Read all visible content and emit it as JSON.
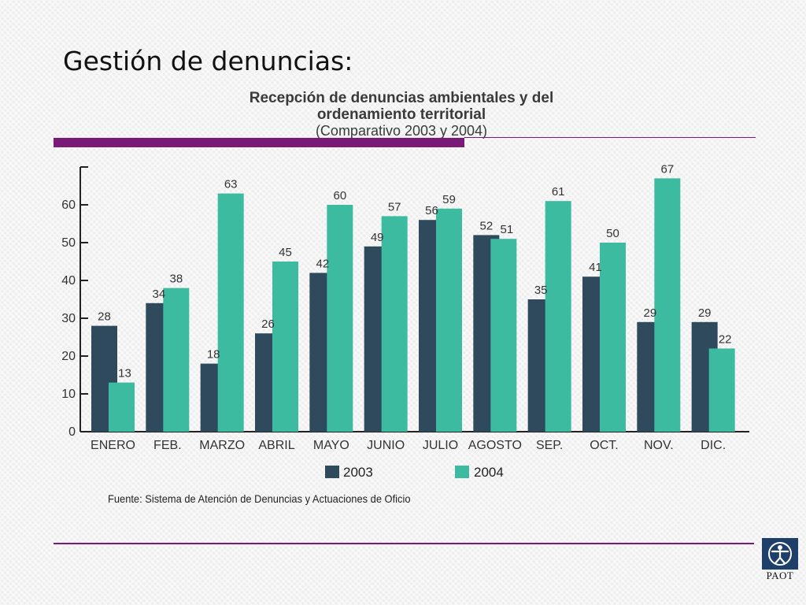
{
  "slide": {
    "title": "Gestión de denuncias:"
  },
  "colors": {
    "accent_purple": "#7a1a78",
    "series_2003": "#2e4a5c",
    "series_2004": "#3dbba1",
    "logo_blue": "#1f3f6b"
  },
  "chart_data": {
    "type": "bar",
    "title_line1": "Recepción  de denuncias ambientales y del",
    "title_line2": "ordenamiento territorial",
    "subtitle": "(Comparativo 2003 y 2004)",
    "categories": [
      "ENERO",
      "FEB.",
      "MARZO",
      "ABRIL",
      "MAYO",
      "JUNIO",
      "JULIO",
      "AGOSTO",
      "SEP.",
      "OCT.",
      "NOV.",
      "DIC."
    ],
    "series": [
      {
        "name": "2003",
        "values": [
          28,
          34,
          18,
          26,
          42,
          49,
          56,
          52,
          35,
          41,
          29,
          29
        ]
      },
      {
        "name": "2004",
        "values": [
          13,
          38,
          63,
          45,
          60,
          57,
          59,
          51,
          61,
          50,
          67,
          22
        ]
      }
    ],
    "yticks": [
      "0",
      "10",
      "20",
      "30",
      "40",
      "50",
      "60"
    ],
    "ylim": [
      0,
      70
    ],
    "grid": false,
    "legend_position": "bottom",
    "source": "Fuente: Sistema de Atención de Denuncias  y Actuaciones de Oficio"
  },
  "logo": {
    "text": "PAOT",
    "icon": "human-figure-icon"
  }
}
